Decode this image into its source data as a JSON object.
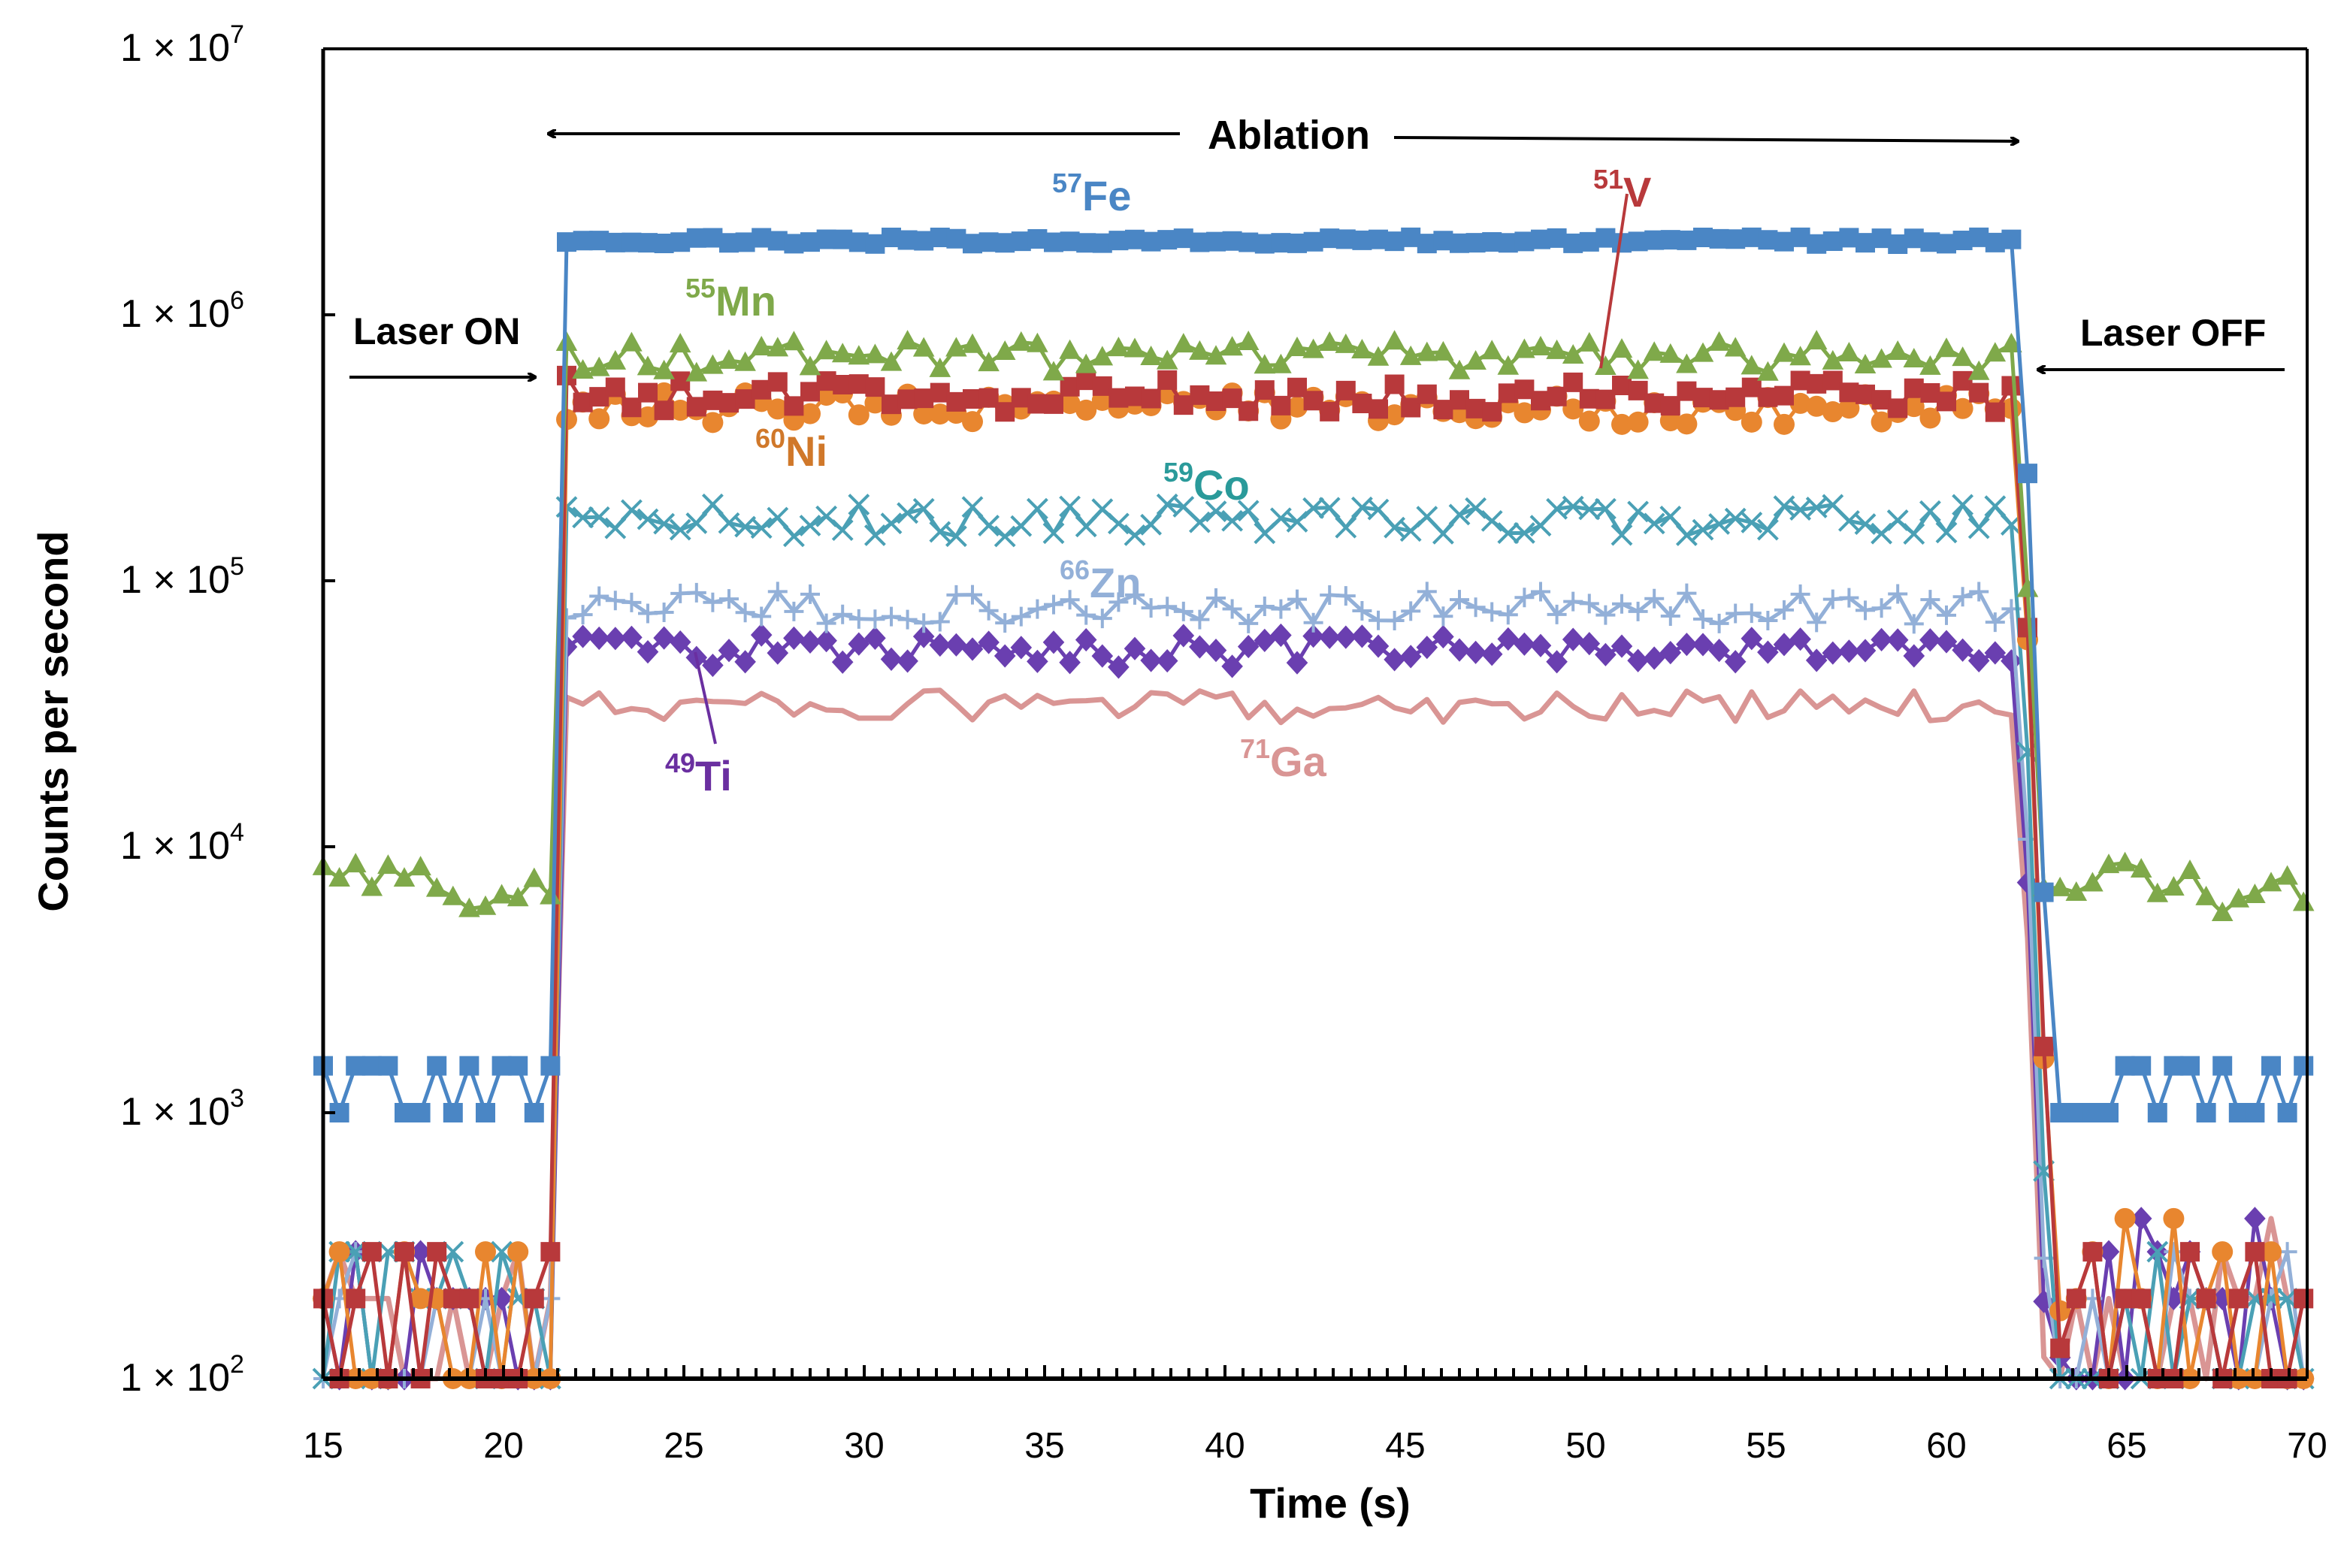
{
  "chart_data": {
    "type": "line",
    "title": "",
    "xlabel": "Time (s)",
    "ylabel": "Counts per second",
    "xlim": [
      15,
      70
    ],
    "ylim": [
      100,
      10000000
    ],
    "yscale": "log",
    "x_ticks": [
      "15",
      "20",
      "25",
      "30",
      "35",
      "40",
      "45",
      "50",
      "55",
      "60",
      "65",
      "70"
    ],
    "y_ticks": [
      {
        "value": 100,
        "mantissa": "1 × 10",
        "exponent": "2"
      },
      {
        "value": 1000,
        "mantissa": "1 × 10",
        "exponent": "3"
      },
      {
        "value": 10000,
        "mantissa": "1 × 10",
        "exponent": "4"
      },
      {
        "value": 100000,
        "mantissa": "1 × 10",
        "exponent": "5"
      },
      {
        "value": 1000000,
        "mantissa": "1 × 10",
        "exponent": "6"
      },
      {
        "value": 10000000,
        "mantissa": "1 × 10",
        "exponent": "7"
      }
    ],
    "grid": false,
    "legend": "none",
    "annotations": {
      "ablation": "Ablation",
      "laser_on": "Laser ON",
      "laser_off": "Laser OFF"
    },
    "ablation_window": [
      21.5,
      62
    ],
    "series": [
      {
        "name": "Fe",
        "isotope": "57",
        "marker": "square",
        "color": "#4a86c5",
        "background_before": 1000,
        "background_after": 1000,
        "plateau": 1900000
      },
      {
        "name": "Mn",
        "isotope": "55",
        "marker": "triangle",
        "color": "#7fa94a",
        "background_before": 7000,
        "background_after": 7000,
        "plateau": 700000
      },
      {
        "name": "V",
        "isotope": "51",
        "marker": "square",
        "color": "#b8393b",
        "background_before": 130,
        "background_after": 130,
        "plateau": 500000
      },
      {
        "name": "Ni",
        "isotope": "60",
        "marker": "circle",
        "color": "#e8862f",
        "background_before": 160,
        "background_after": 180,
        "plateau": 450000
      },
      {
        "name": "Co",
        "isotope": "59",
        "marker": "x",
        "color": "#4aa0b5",
        "background_before": 100,
        "background_after": 100,
        "plateau": 170000
      },
      {
        "name": "Zn",
        "isotope": "66",
        "marker": "plus",
        "color": "#93b0d8",
        "background_before": 100,
        "background_after": 100,
        "plateau": 80000
      },
      {
        "name": "Ti",
        "isotope": "49",
        "marker": "diamond",
        "color": "#6a3fb0",
        "background_before": 120,
        "background_after": 120,
        "plateau": 55000
      },
      {
        "name": "Ga",
        "isotope": "71",
        "marker": "none",
        "color": "#d99594",
        "background_before": 100,
        "background_after": 100,
        "plateau": 34000
      }
    ],
    "series_labels": [
      {
        "isotope": "57",
        "name": "Fe",
        "color": "#4a86c5"
      },
      {
        "isotope": "51",
        "name": "V",
        "color": "#b8393b"
      },
      {
        "isotope": "55",
        "name": "Mn",
        "color": "#7fa94a"
      },
      {
        "isotope": "60",
        "name": "Ni",
        "color": "#d0782a"
      },
      {
        "isotope": "59",
        "name": "Co",
        "color": "#2a9a9a"
      },
      {
        "isotope": "66",
        "name": "Zn",
        "color": "#93b0d8"
      },
      {
        "isotope": "49",
        "name": "Ti",
        "color": "#6a2fa0"
      },
      {
        "isotope": "71",
        "name": "Ga",
        "color": "#d99594"
      }
    ]
  }
}
